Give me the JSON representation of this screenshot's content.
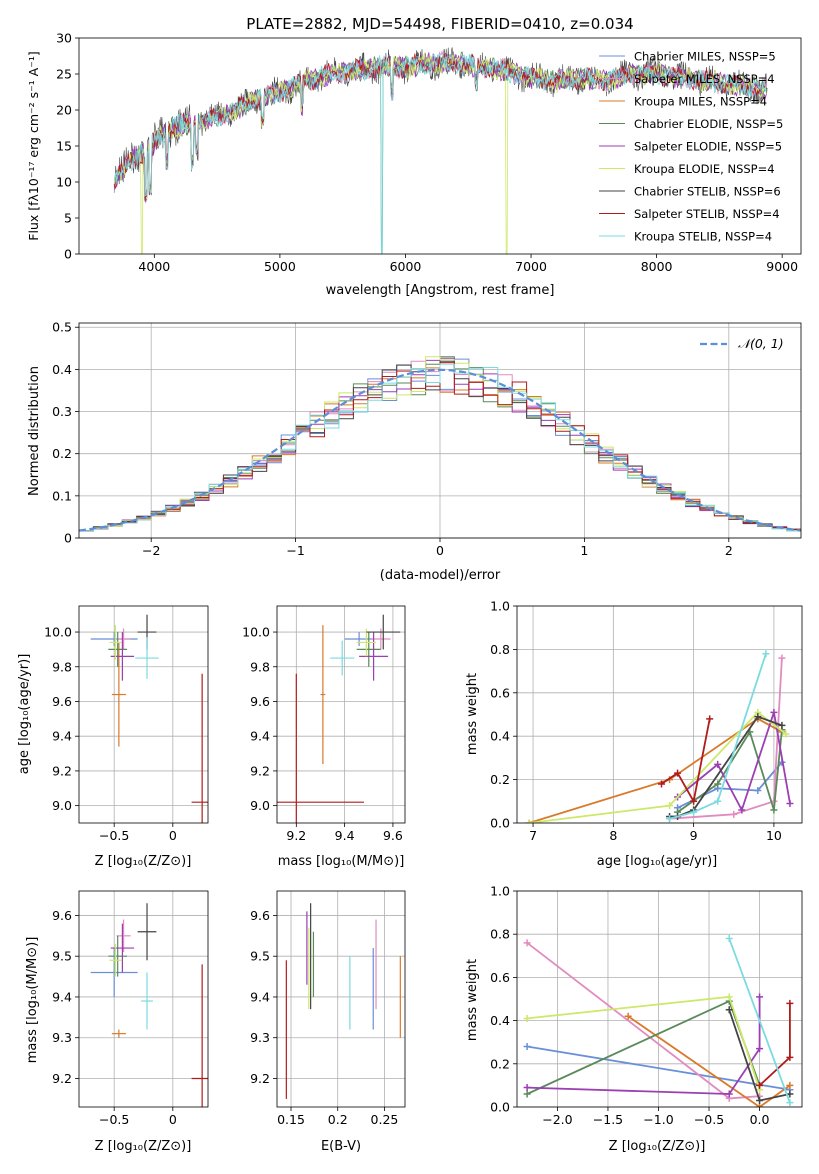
{
  "chart_data": [
    {
      "id": "spectrum",
      "type": "line",
      "title": "PLATE=2882, MJD=54498, FIBERID=0410, z=0.034",
      "xlabel": "wavelength [Angstrom, rest frame]",
      "ylabel": "Flux [fλ10⁻¹⁷ erg cm⁻² s⁻¹ A⁻¹]",
      "xlim": [
        3400,
        9150
      ],
      "ylim": [
        0,
        30
      ],
      "xticks": [
        4000,
        5000,
        6000,
        7000,
        8000,
        9000
      ],
      "yticks": [
        0,
        5,
        10,
        15,
        20,
        25,
        30
      ],
      "legend_position": "top-right",
      "series": [
        {
          "name": "Chabrier MILES, NSSP=5",
          "color": "#6a8fd9"
        },
        {
          "name": "Salpeter MILES, NSSP=4",
          "color": "#e28bc0"
        },
        {
          "name": "Kroupa MILES, NSSP=4",
          "color": "#d97a2b"
        },
        {
          "name": "Chabrier ELODIE, NSSP=5",
          "color": "#5a8a5a"
        },
        {
          "name": "Salpeter ELODIE, NSSP=5",
          "color": "#9b3fb3"
        },
        {
          "name": "Kroupa ELODIE, NSSP=4",
          "color": "#cde86a"
        },
        {
          "name": "Chabrier STELIB, NSSP=6",
          "color": "#444444"
        },
        {
          "name": "Salpeter STELIB, NSSP=4",
          "color": "#b01c1c"
        },
        {
          "name": "Kroupa STELIB, NSSP=4",
          "color": "#7adbe0"
        }
      ],
      "continuum": {
        "x": [
          3680,
          3750,
          3850,
          3950,
          4050,
          4150,
          4250,
          4400,
          4600,
          4800,
          5000,
          5200,
          5400,
          5600,
          5800,
          6000,
          6200,
          6400,
          6600,
          6800,
          7000,
          7200,
          7400,
          7600,
          7800,
          8000,
          8200,
          8400,
          8600,
          8800,
          8880
        ],
        "y": [
          10,
          12,
          13.5,
          14.5,
          16.5,
          17.5,
          18,
          18.5,
          19.5,
          21.5,
          22.5,
          24,
          25,
          25.5,
          26,
          26,
          26.5,
          26.5,
          26,
          25.5,
          24.5,
          24,
          24.5,
          24,
          25,
          25,
          24.5,
          24,
          23.5,
          23,
          23
        ]
      }
    },
    {
      "id": "residuals",
      "type": "line",
      "xlabel": "(data-model)/error",
      "ylabel": "Normed distribution",
      "xlim": [
        -2.5,
        2.5
      ],
      "ylim": [
        0,
        0.51
      ],
      "xticks": [
        -2,
        -1,
        0,
        1,
        2
      ],
      "yticks": [
        0.0,
        0.1,
        0.2,
        0.3,
        0.4,
        0.5
      ],
      "bin_width": 0.1,
      "normal_label": "𝒩(0, 1)",
      "normal_color": "#5b8fd6"
    },
    {
      "id": "age-vs-z",
      "type": "scatter",
      "xlabel": "Z [log₁₀(Z/Z⊙)]",
      "ylabel": "age  [log₁₀(age/yr)]",
      "xlim": [
        -0.8,
        0.3
      ],
      "ylim": [
        8.9,
        10.15
      ],
      "xticks": [
        -0.5,
        0.0
      ],
      "yticks": [
        9.0,
        9.2,
        9.4,
        9.6,
        9.8,
        10.0
      ],
      "points": [
        {
          "x": -0.5,
          "y": 9.96,
          "xerr": 0.2,
          "yerr": 0.04,
          "color": "#6a8fd9"
        },
        {
          "x": -0.42,
          "y": 9.96,
          "xerr": 0.06,
          "yerr": 0.06,
          "color": "#e28bc0"
        },
        {
          "x": -0.46,
          "y": 9.64,
          "xerr": 0.06,
          "yerr": 0.3,
          "color": "#d97a2b"
        },
        {
          "x": -0.47,
          "y": 9.9,
          "xerr": 0.08,
          "yerr": 0.1,
          "color": "#5a8a5a"
        },
        {
          "x": -0.43,
          "y": 9.86,
          "xerr": 0.1,
          "yerr": 0.14,
          "color": "#9b3fb3"
        },
        {
          "x": -0.49,
          "y": 9.94,
          "xerr": 0.05,
          "yerr": 0.1,
          "color": "#cde86a"
        },
        {
          "x": -0.22,
          "y": 10.0,
          "xerr": 0.08,
          "yerr": 0.1,
          "color": "#444444"
        },
        {
          "x": 0.25,
          "y": 9.02,
          "xerr": 0.09,
          "yerr": 0.74,
          "color": "#b01c1c"
        },
        {
          "x": -0.22,
          "y": 9.85,
          "xerr": 0.1,
          "yerr": 0.12,
          "color": "#7adbe0"
        }
      ]
    },
    {
      "id": "age-vs-mass",
      "type": "scatter",
      "xlabel": "mass [log₁₀(M/M⊙)]",
      "ylabel": "",
      "xlim": [
        9.12,
        9.65
      ],
      "ylim": [
        8.9,
        10.15
      ],
      "xticks": [
        9.2,
        9.4,
        9.6
      ],
      "yticks": [
        9.0,
        9.2,
        9.4,
        9.6,
        9.8,
        10.0
      ],
      "points": [
        {
          "x": 9.46,
          "y": 9.96,
          "xerr": 0.06,
          "yerr": 0.04,
          "color": "#6a8fd9"
        },
        {
          "x": 9.55,
          "y": 9.96,
          "xerr": 0.04,
          "yerr": 0.06,
          "color": "#e28bc0"
        },
        {
          "x": 9.31,
          "y": 9.64,
          "xerr": 0.01,
          "yerr": 0.4,
          "color": "#d97a2b"
        },
        {
          "x": 9.5,
          "y": 9.9,
          "xerr": 0.05,
          "yerr": 0.1,
          "color": "#5a8a5a"
        },
        {
          "x": 9.52,
          "y": 9.86,
          "xerr": 0.06,
          "yerr": 0.14,
          "color": "#9b3fb3"
        },
        {
          "x": 9.49,
          "y": 9.94,
          "xerr": 0.04,
          "yerr": 0.08,
          "color": "#cde86a"
        },
        {
          "x": 9.56,
          "y": 10.0,
          "xerr": 0.07,
          "yerr": 0.1,
          "color": "#444444"
        },
        {
          "x": 9.2,
          "y": 9.02,
          "xerr": 0.28,
          "yerr": 0.74,
          "color": "#b01c1c"
        },
        {
          "x": 9.39,
          "y": 9.85,
          "xerr": 0.05,
          "yerr": 0.1,
          "color": "#7adbe0"
        }
      ]
    },
    {
      "id": "weight-vs-age",
      "type": "line",
      "xlabel": "age  [log₁₀(age/yr)]",
      "ylabel": "mass weight",
      "xlim": [
        6.8,
        10.35
      ],
      "ylim": [
        0,
        1.0
      ],
      "xticks": [
        7,
        8,
        9,
        10
      ],
      "yticks": [
        0.0,
        0.2,
        0.4,
        0.6,
        0.8,
        1.0
      ],
      "series": [
        {
          "color": "#6a8fd9",
          "x": [
            8.8,
            9.3,
            9.8,
            10.1
          ],
          "y": [
            0.07,
            0.16,
            0.15,
            0.28
          ]
        },
        {
          "color": "#e28bc0",
          "x": [
            8.7,
            9.5,
            10.0,
            10.1
          ],
          "y": [
            0.02,
            0.04,
            0.1,
            0.76
          ]
        },
        {
          "color": "#d97a2b",
          "x": [
            6.95,
            8.7,
            9.8,
            10.1
          ],
          "y": [
            0.0,
            0.2,
            0.48,
            0.42
          ]
        },
        {
          "color": "#5a8a5a",
          "x": [
            8.8,
            9.3,
            9.7,
            10.0,
            10.1
          ],
          "y": [
            0.05,
            0.18,
            0.42,
            0.06,
            0.43
          ]
        },
        {
          "color": "#9b3fb3",
          "x": [
            8.8,
            9.3,
            9.6,
            10.0,
            10.2
          ],
          "y": [
            0.12,
            0.27,
            0.06,
            0.51,
            0.09
          ]
        },
        {
          "color": "#cde86a",
          "x": [
            6.95,
            8.7,
            9.8,
            10.15
          ],
          "y": [
            0.0,
            0.08,
            0.51,
            0.41
          ]
        },
        {
          "color": "#444444",
          "x": [
            8.7,
            8.8,
            9.0,
            9.8,
            10.1
          ],
          "y": [
            0.03,
            0.03,
            0.06,
            0.49,
            0.45
          ]
        },
        {
          "color": "#b01c1c",
          "x": [
            8.6,
            8.8,
            9.0,
            9.2
          ],
          "y": [
            0.18,
            0.23,
            0.1,
            0.48
          ]
        },
        {
          "color": "#7adbe0",
          "x": [
            8.7,
            9.0,
            9.3,
            9.9
          ],
          "y": [
            0.02,
            0.05,
            0.1,
            0.78
          ]
        }
      ]
    },
    {
      "id": "mass-vs-z",
      "type": "scatter",
      "xlabel": "Z [log₁₀(Z/Z⊙)]",
      "ylabel": "mass [log₁₀(M/M⊙)]",
      "xlim": [
        -0.8,
        0.3
      ],
      "ylim": [
        9.13,
        9.66
      ],
      "xticks": [
        -0.5,
        0.0
      ],
      "yticks": [
        9.2,
        9.3,
        9.4,
        9.5,
        9.6
      ],
      "points": [
        {
          "x": -0.5,
          "y": 9.46,
          "xerr": 0.2,
          "yerr": 0.06,
          "color": "#6a8fd9"
        },
        {
          "x": -0.42,
          "y": 9.55,
          "xerr": 0.06,
          "yerr": 0.04,
          "color": "#e28bc0"
        },
        {
          "x": -0.46,
          "y": 9.31,
          "xerr": 0.06,
          "yerr": 0.01,
          "color": "#d97a2b"
        },
        {
          "x": -0.47,
          "y": 9.5,
          "xerr": 0.08,
          "yerr": 0.05,
          "color": "#5a8a5a"
        },
        {
          "x": -0.43,
          "y": 9.52,
          "xerr": 0.1,
          "yerr": 0.06,
          "color": "#9b3fb3"
        },
        {
          "x": -0.49,
          "y": 9.49,
          "xerr": 0.05,
          "yerr": 0.04,
          "color": "#cde86a"
        },
        {
          "x": -0.22,
          "y": 9.56,
          "xerr": 0.08,
          "yerr": 0.07,
          "color": "#444444"
        },
        {
          "x": 0.25,
          "y": 9.2,
          "xerr": 0.09,
          "yerr": 0.28,
          "color": "#b01c1c"
        },
        {
          "x": -0.22,
          "y": 9.39,
          "xerr": 0.05,
          "yerr": 0.07,
          "color": "#7adbe0"
        }
      ]
    },
    {
      "id": "mass-vs-ebv",
      "type": "scatter",
      "xlabel": "E(B-V)",
      "ylabel": "",
      "xlim": [
        0.135,
        0.272
      ],
      "ylim": [
        9.13,
        9.66
      ],
      "xticks": [
        0.15,
        0.2,
        0.25
      ],
      "yticks": [
        9.2,
        9.3,
        9.4,
        9.5,
        9.6
      ],
      "points": [
        {
          "x": 0.238,
          "y": 9.42,
          "yerr": 0.1,
          "color": "#6a8fd9"
        },
        {
          "x": 0.241,
          "y": 9.48,
          "yerr": 0.11,
          "color": "#e28bc0"
        },
        {
          "x": 0.267,
          "y": 9.4,
          "yerr": 0.1,
          "color": "#d97a2b"
        },
        {
          "x": 0.174,
          "y": 9.48,
          "yerr": 0.08,
          "color": "#5a8a5a"
        },
        {
          "x": 0.167,
          "y": 9.52,
          "yerr": 0.09,
          "color": "#9b3fb3"
        },
        {
          "x": 0.169,
          "y": 9.47,
          "yerr": 0.1,
          "color": "#cde86a"
        },
        {
          "x": 0.171,
          "y": 9.5,
          "yerr": 0.13,
          "color": "#444444"
        },
        {
          "x": 0.145,
          "y": 9.32,
          "yerr": 0.17,
          "color": "#b01c1c"
        },
        {
          "x": 0.213,
          "y": 9.41,
          "yerr": 0.09,
          "color": "#7adbe0"
        }
      ]
    },
    {
      "id": "weight-vs-z",
      "type": "line",
      "xlabel": "Z [log₁₀(Z/Z⊙)]",
      "ylabel": "mass weight",
      "xlim": [
        -2.4,
        0.42
      ],
      "ylim": [
        0,
        1.0
      ],
      "xticks": [
        -2.0,
        -1.5,
        -1.0,
        -0.5,
        0.0
      ],
      "yticks": [
        0.0,
        0.2,
        0.4,
        0.6,
        0.8,
        1.0
      ],
      "series": [
        {
          "color": "#6a8fd9",
          "x": [
            -2.3,
            0.3
          ],
          "y": [
            0.28,
            0.08
          ]
        },
        {
          "color": "#e28bc0",
          "x": [
            -2.3,
            -0.3,
            0.0
          ],
          "y": [
            0.76,
            0.04,
            0.05
          ]
        },
        {
          "color": "#d97a2b",
          "x": [
            -1.3,
            0.0,
            0.3
          ],
          "y": [
            0.42,
            0.0,
            0.1
          ]
        },
        {
          "color": "#5a8a5a",
          "x": [
            -2.3,
            -0.3,
            0.0
          ],
          "y": [
            0.06,
            0.49,
            0.1
          ]
        },
        {
          "color": "#9b3fb3",
          "x": [
            -2.3,
            -0.3,
            0.0,
            0.0
          ],
          "y": [
            0.09,
            0.06,
            0.27,
            0.51
          ]
        },
        {
          "color": "#cde86a",
          "x": [
            -2.3,
            -0.3,
            0.0
          ],
          "y": [
            0.41,
            0.51,
            0.08
          ]
        },
        {
          "color": "#444444",
          "x": [
            -0.3,
            0.0,
            0.3
          ],
          "y": [
            0.45,
            0.03,
            0.06
          ]
        },
        {
          "color": "#b01c1c",
          "x": [
            0.0,
            0.3,
            0.3
          ],
          "y": [
            0.1,
            0.23,
            0.48
          ]
        },
        {
          "color": "#7adbe0",
          "x": [
            -0.3,
            0.3
          ],
          "y": [
            0.78,
            0.02
          ]
        }
      ]
    }
  ]
}
